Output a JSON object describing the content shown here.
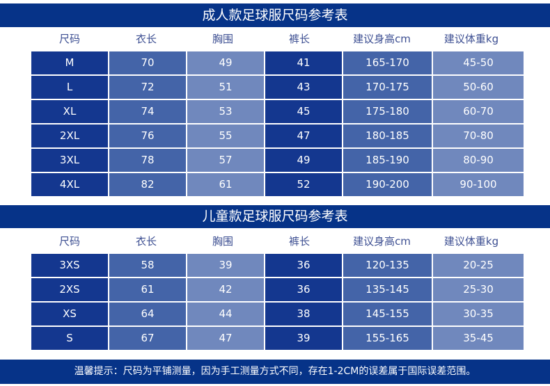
{
  "adult": {
    "title": "成人款足球服尺码参考表",
    "headers": [
      "尺码",
      "衣长",
      "胸围",
      "裤长",
      "建议身高cm",
      "建议体重kg"
    ],
    "rows": [
      [
        "M",
        "70",
        "49",
        "41",
        "165-170",
        "45-50"
      ],
      [
        "L",
        "72",
        "51",
        "43",
        "170-175",
        "50-60"
      ],
      [
        "XL",
        "74",
        "53",
        "45",
        "175-180",
        "60-70"
      ],
      [
        "2XL",
        "76",
        "55",
        "47",
        "180-185",
        "70-80"
      ],
      [
        "3XL",
        "78",
        "57",
        "49",
        "185-190",
        "80-90"
      ],
      [
        "4XL",
        "82",
        "61",
        "52",
        "190-200",
        "90-100"
      ]
    ]
  },
  "kids": {
    "title": "儿童款足球服尺码参考表",
    "headers": [
      "尺码",
      "衣长",
      "胸围",
      "裤长",
      "建议身高cm",
      "建议体重kg"
    ],
    "rows": [
      [
        "3XS",
        "58",
        "39",
        "36",
        "120-135",
        "20-25"
      ],
      [
        "2XS",
        "61",
        "42",
        "36",
        "135-145",
        "25-30"
      ],
      [
        "XS",
        "64",
        "44",
        "38",
        "145-155",
        "30-35"
      ],
      [
        "S",
        "67",
        "47",
        "39",
        "155-165",
        "35-45"
      ]
    ]
  },
  "footer": "温馨提示：尺码为平铺测量，因为手工测量方式不同，存在1-2CM的误差属于国际误差范围。",
  "colors": {
    "banner": "#063388",
    "dark": "#14378f",
    "mid": "#4464a8",
    "light": "#7088bd"
  }
}
